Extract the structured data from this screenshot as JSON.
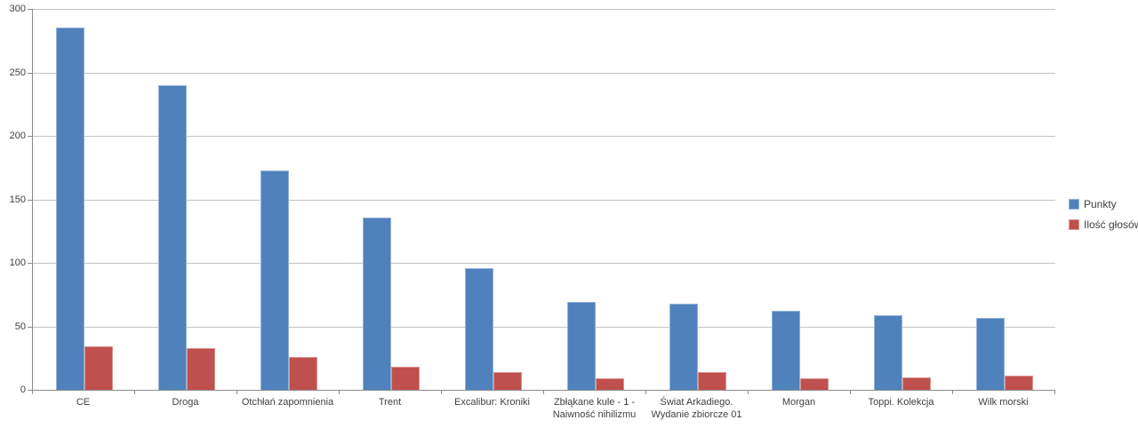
{
  "chart_data": {
    "type": "bar",
    "title": "",
    "xlabel": "",
    "ylabel": "",
    "categories": [
      "CE",
      "Droga",
      "Otchłań zapomnienia",
      "Trent",
      "Excalibur: Kroniki",
      "Zbłąkane kule - 1 - Naiwność nihilizmu",
      "Świat Arkadiego. Wydanie zbiorcze 01",
      "Morgan",
      "Toppi. Kolekcja",
      "Wilk morski"
    ],
    "series": [
      {
        "name": "Punkty",
        "color": "#4F81BD",
        "border_color": "#95B3D7",
        "values": [
          285,
          240,
          173,
          136,
          96,
          69,
          68,
          62,
          59,
          57
        ]
      },
      {
        "name": "Ilość głosów",
        "color": "#C0504D",
        "border_color": "#D99694",
        "values": [
          34,
          33,
          26,
          18,
          14,
          9,
          14,
          9,
          10,
          11
        ]
      }
    ],
    "ylim": [
      0,
      300
    ],
    "yticks": [
      0,
      50,
      100,
      150,
      200,
      250,
      300
    ],
    "grid": true,
    "legend_position": "right"
  },
  "style": {
    "background": "#FFFFFF",
    "gridline_color": "#C4C4C4",
    "axis_color": "#8C8C8C",
    "text_color": "#3F3F3F"
  }
}
